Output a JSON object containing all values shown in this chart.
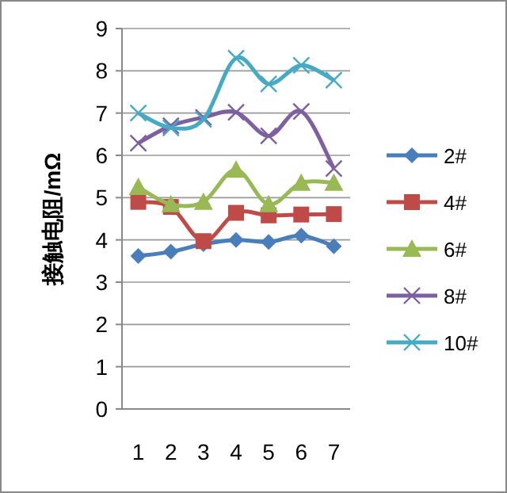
{
  "chart_data": {
    "type": "line",
    "ylabel": "接触电阻/mΩ",
    "categories": [
      "1",
      "2",
      "3",
      "4",
      "5",
      "6",
      "7"
    ],
    "series": [
      {
        "name": "2#",
        "color": "#4a7ebb",
        "marker": "diamond",
        "values": [
          3.62,
          3.72,
          3.9,
          4.0,
          3.95,
          4.1,
          3.85
        ]
      },
      {
        "name": "4#",
        "color": "#be4b48",
        "marker": "square",
        "values": [
          4.9,
          4.78,
          3.97,
          4.64,
          4.58,
          4.6,
          4.61
        ]
      },
      {
        "name": "6#",
        "color": "#98b954",
        "marker": "triangle",
        "values": [
          5.25,
          4.84,
          4.9,
          5.66,
          4.84,
          5.35,
          5.35
        ]
      },
      {
        "name": "8#",
        "color": "#7d60a0",
        "marker": "cross",
        "values": [
          6.29,
          6.7,
          6.9,
          7.02,
          6.46,
          7.04,
          5.69
        ]
      },
      {
        "name": "10#",
        "color": "#46aac5",
        "marker": "cross",
        "values": [
          7.0,
          6.65,
          6.85,
          8.3,
          7.69,
          8.13,
          7.78
        ]
      }
    ],
    "ylim": [
      0,
      9
    ],
    "yticks": [
      0,
      1,
      2,
      3,
      4,
      5,
      6,
      7,
      8,
      9
    ],
    "grid": "y",
    "legend": "right"
  }
}
